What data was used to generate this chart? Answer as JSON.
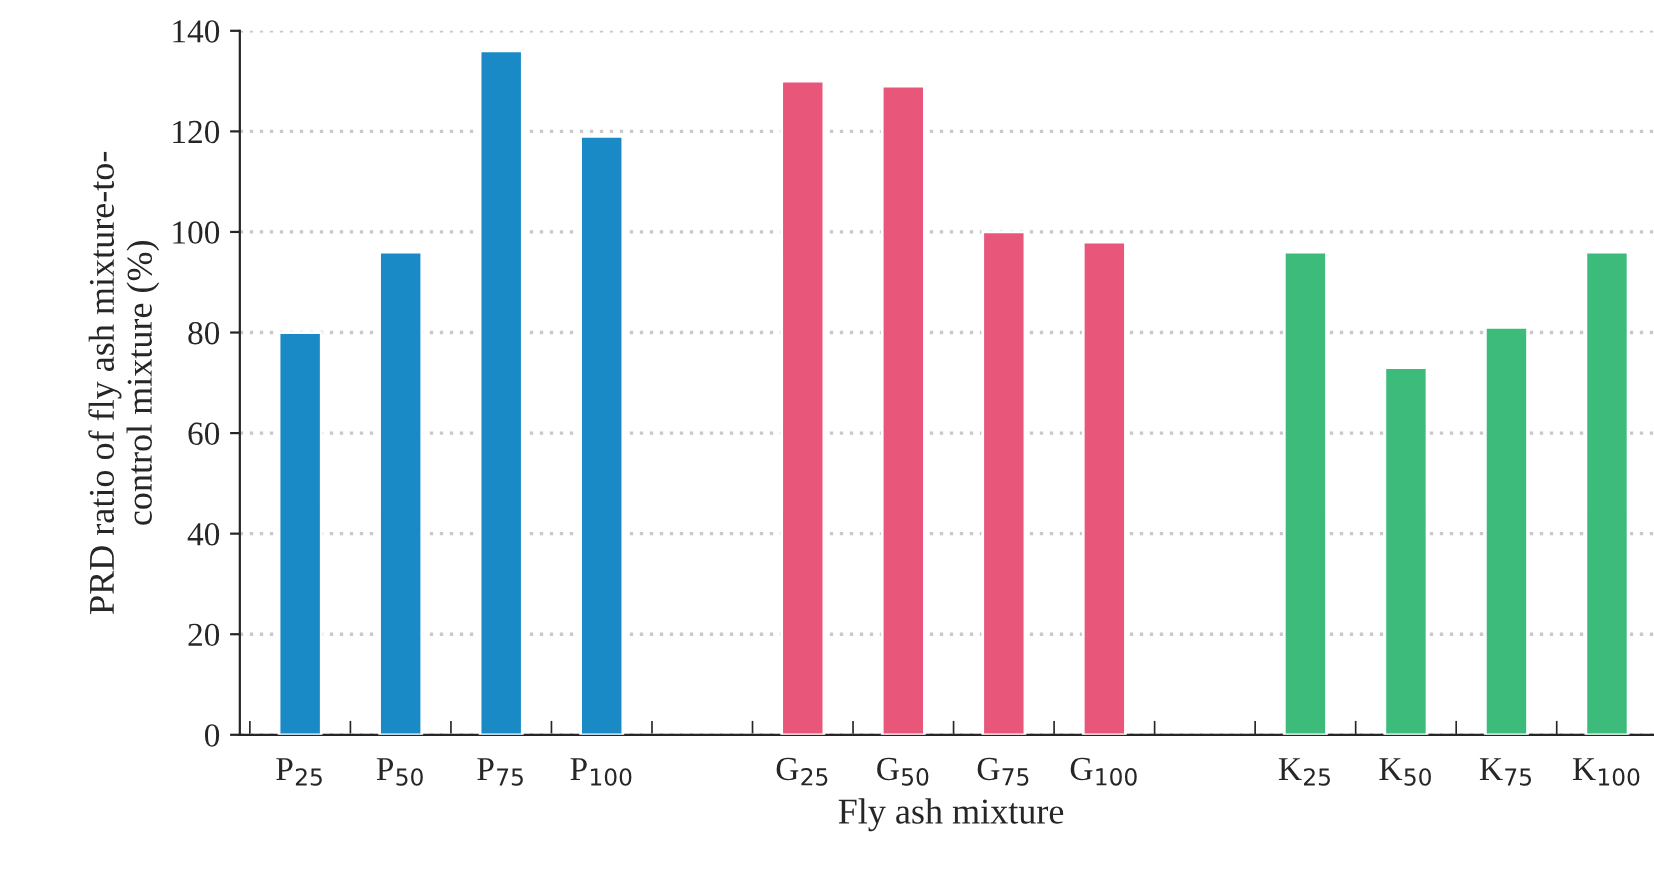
{
  "chart_data": {
    "type": "bar",
    "xlabel": "Fly ash mixture",
    "ylabel": "PRD ratio of fly ash mixture-to-\ncontrol mixture (%)",
    "categories": [
      "P$_{25}$",
      "P$_{50}$",
      "P$_{75}$",
      "P$_{100}$",
      null,
      "G$_{25}$",
      "G$_{50}$",
      "G$_{75}$",
      "G$_{100}$",
      null,
      "K$_{25}$",
      "K$_{50}$",
      "K$_{75}$",
      "K$_{100}$"
    ],
    "values": [
      80,
      96,
      136,
      119,
      null,
      130,
      129,
      100,
      98,
      null,
      96,
      73,
      81,
      96
    ],
    "colors": [
      "#1a8ac6",
      "#1a8ac6",
      "#1a8ac6",
      "#1a8ac6",
      "#ffffff",
      "#e8577a",
      "#e8577a",
      "#e8577a",
      "#e8577a",
      "#ffffff",
      "#3dbb7a",
      "#3dbb7a",
      "#3dbb7a",
      "#3dbb7a"
    ],
    "ylim": [
      0,
      140
    ],
    "yticks": [
      0,
      20,
      40,
      60,
      80,
      100,
      120,
      140
    ],
    "grid": "y"
  }
}
